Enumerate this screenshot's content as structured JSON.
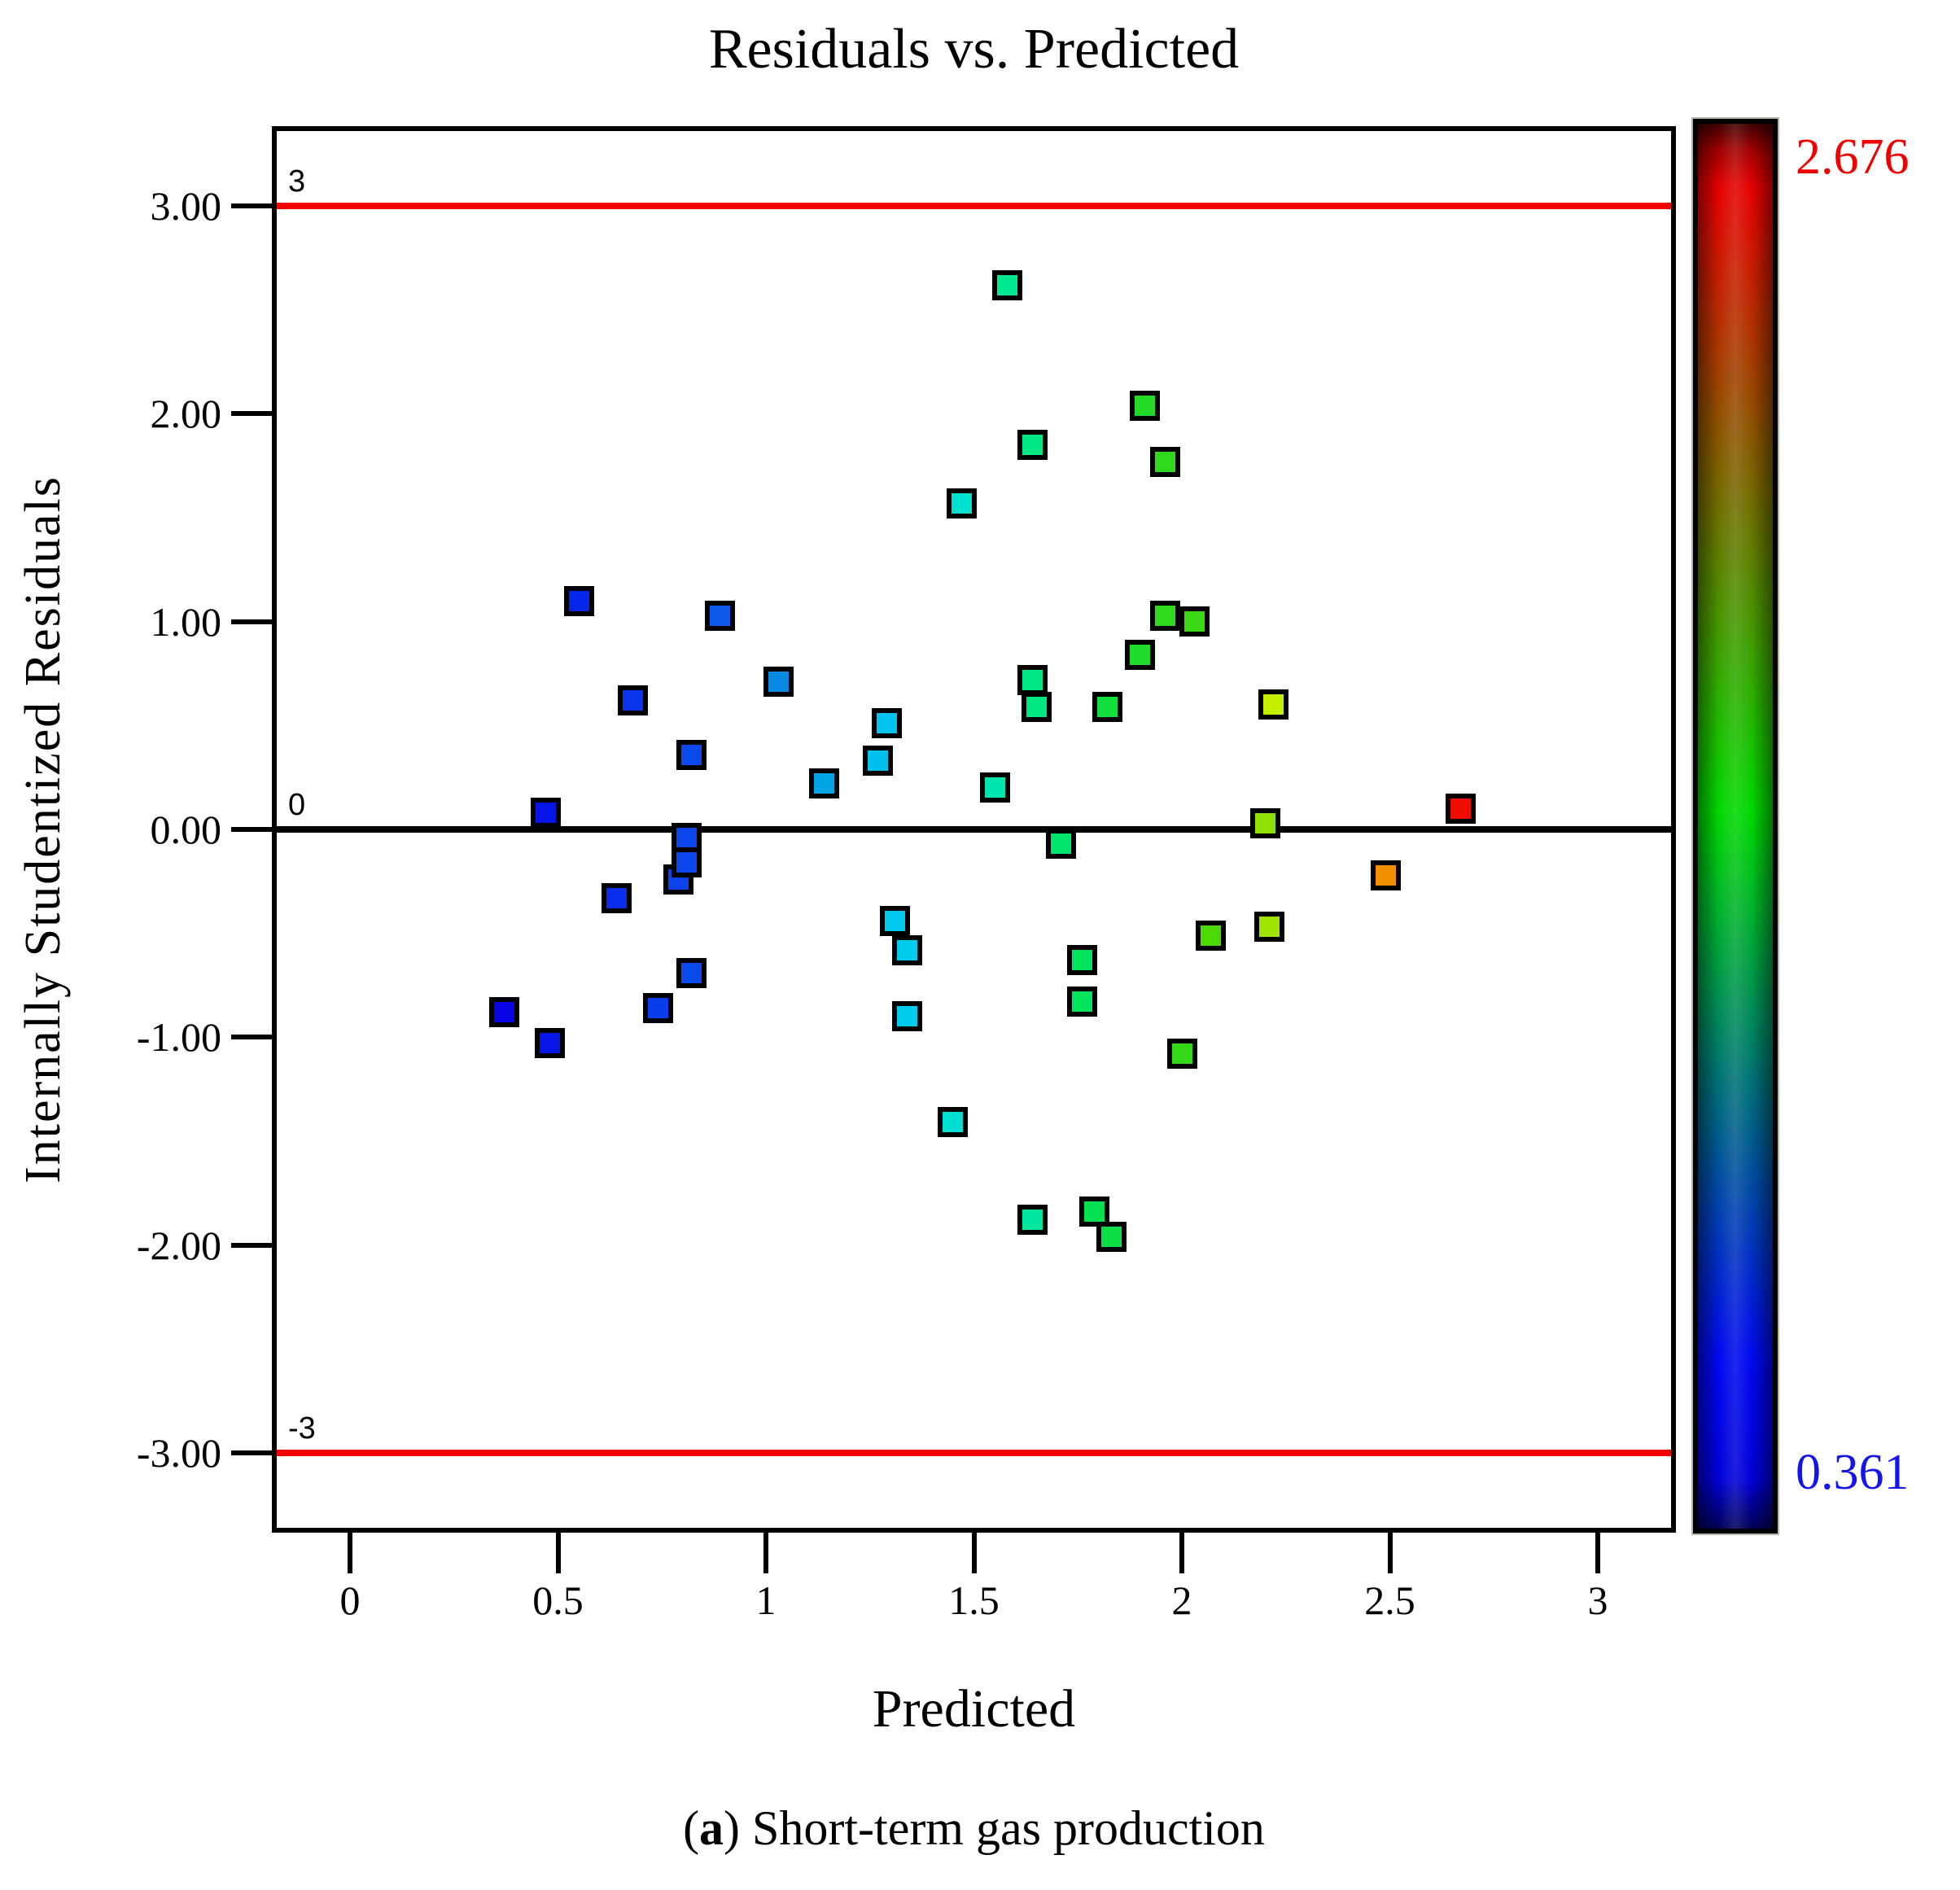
{
  "caption": {
    "prefix": "(",
    "letter": "a",
    "rest": ") Short-term gas production"
  },
  "colorbar": {
    "max_label": "2.676",
    "min_label": "0.361",
    "max_color": "#ee0000",
    "min_color": "#1414ee",
    "gradient_order": "red-top green-middle blue-bottom"
  },
  "chart_data": {
    "type": "scatter",
    "title": "Residuals vs. Predicted",
    "xlabel": "Predicted",
    "ylabel": "Internally Studentized Residuals",
    "xlim": [
      -0.19,
      3.19
    ],
    "ylim": [
      -3.39,
      3.39
    ],
    "grid": false,
    "legend": "colorbar right, colored by predicted value (0.361 blue to 2.676 red)",
    "x_ticks": [
      0,
      0.5,
      1,
      1.5,
      2,
      2.5,
      3
    ],
    "x_tick_labels": [
      "0",
      "0.5",
      "1",
      "1.5",
      "2",
      "2.5",
      "3"
    ],
    "y_ticks": [
      3,
      2,
      1,
      0,
      -1,
      -2,
      -3
    ],
    "y_tick_labels": [
      "3.00",
      "2.00",
      "1.00",
      "0.00",
      "-1.00",
      "-2.00",
      "-3.00"
    ],
    "ref_lines": [
      {
        "value": 3,
        "label": "3",
        "color": "#f50000"
      },
      {
        "value": 0,
        "label": "0",
        "color": "#000000"
      },
      {
        "value": -3,
        "label": "-3",
        "color": "#f50000"
      }
    ],
    "color_scale": {
      "min": 0.361,
      "max": 2.676,
      "min_color": "#0000ee",
      "max_color": "#ee0000"
    },
    "points": [
      {
        "predicted": 0.55,
        "residual": 1.1,
        "color": "#0726ec"
      },
      {
        "predicted": 0.89,
        "residual": 1.03,
        "color": "#0b5aea"
      },
      {
        "predicted": 1.03,
        "residual": 0.71,
        "color": "#0989e2"
      },
      {
        "predicted": 0.68,
        "residual": 0.62,
        "color": "#0a33ec"
      },
      {
        "predicted": 0.82,
        "residual": 0.36,
        "color": "#0b49ec"
      },
      {
        "predicted": 1.14,
        "residual": 0.22,
        "color": "#01a5e6"
      },
      {
        "predicted": 0.47,
        "residual": 0.08,
        "color": "#0714e8"
      },
      {
        "predicted": 0.81,
        "residual": -0.04,
        "color": "#0b45ec"
      },
      {
        "predicted": 0.79,
        "residual": -0.24,
        "color": "#0b42ec"
      },
      {
        "predicted": 0.81,
        "residual": -0.16,
        "color": "#0b45ec"
      },
      {
        "predicted": 0.64,
        "residual": -0.33,
        "color": "#0a2deb"
      },
      {
        "predicted": 0.37,
        "residual": -0.88,
        "color": "#0704e6"
      },
      {
        "predicted": 0.48,
        "residual": -1.03,
        "color": "#0716e8"
      },
      {
        "predicted": 0.74,
        "residual": -0.86,
        "color": "#0b3cec"
      },
      {
        "predicted": 0.82,
        "residual": -0.69,
        "color": "#0b49ec"
      },
      {
        "predicted": 1.29,
        "residual": 0.51,
        "color": "#00c4ee"
      },
      {
        "predicted": 1.27,
        "residual": 0.33,
        "color": "#00c0ee"
      },
      {
        "predicted": 1.31,
        "residual": -0.44,
        "color": "#00c8ee"
      },
      {
        "predicted": 1.34,
        "residual": -0.58,
        "color": "#00ccee"
      },
      {
        "predicted": 1.34,
        "residual": -0.9,
        "color": "#00ccee"
      },
      {
        "predicted": 1.45,
        "residual": -1.41,
        "color": "#00dfd2"
      },
      {
        "predicted": 1.47,
        "residual": 1.57,
        "color": "#00e0ce"
      },
      {
        "predicted": 1.55,
        "residual": 0.2,
        "color": "#00e6ae"
      },
      {
        "predicted": 1.58,
        "residual": 2.62,
        "color": "#00e890"
      },
      {
        "predicted": 1.64,
        "residual": 1.85,
        "color": "#00e885"
      },
      {
        "predicted": 1.64,
        "residual": 0.72,
        "color": "#00e885"
      },
      {
        "predicted": 1.65,
        "residual": 0.59,
        "color": "#00e882"
      },
      {
        "predicted": 1.71,
        "residual": -0.07,
        "color": "#00e56c"
      },
      {
        "predicted": 1.64,
        "residual": -1.88,
        "color": "#00e69e"
      },
      {
        "predicted": 1.79,
        "residual": -1.84,
        "color": "#04e150"
      },
      {
        "predicted": 1.83,
        "residual": -1.96,
        "color": "#0cdf45"
      },
      {
        "predicted": 1.76,
        "residual": -0.63,
        "color": "#00e35c"
      },
      {
        "predicted": 1.76,
        "residual": -0.83,
        "color": "#00e35c"
      },
      {
        "predicted": 1.82,
        "residual": 0.59,
        "color": "#10df3e"
      },
      {
        "predicted": 1.9,
        "residual": 0.84,
        "color": "#21db2a"
      },
      {
        "predicted": 1.91,
        "residual": 2.04,
        "color": "#24da26"
      },
      {
        "predicted": 1.96,
        "residual": 1.77,
        "color": "#2ed91c"
      },
      {
        "predicted": 1.96,
        "residual": 1.03,
        "color": "#2ed91c"
      },
      {
        "predicted": 2.03,
        "residual": 1.0,
        "color": "#38d912"
      },
      {
        "predicted": 2.0,
        "residual": -1.08,
        "color": "#34d915"
      },
      {
        "predicted": 2.07,
        "residual": -0.51,
        "color": "#4bda00"
      },
      {
        "predicted": 2.2,
        "residual": 0.03,
        "color": "#8fe000"
      },
      {
        "predicted": 2.21,
        "residual": -0.47,
        "color": "#9fe400"
      },
      {
        "predicted": 2.22,
        "residual": 0.6,
        "color": "#c4ef00"
      },
      {
        "predicted": 2.49,
        "residual": -0.22,
        "color": "#f29100"
      },
      {
        "predicted": 2.67,
        "residual": 0.1,
        "color": "#ee0d00"
      }
    ]
  }
}
